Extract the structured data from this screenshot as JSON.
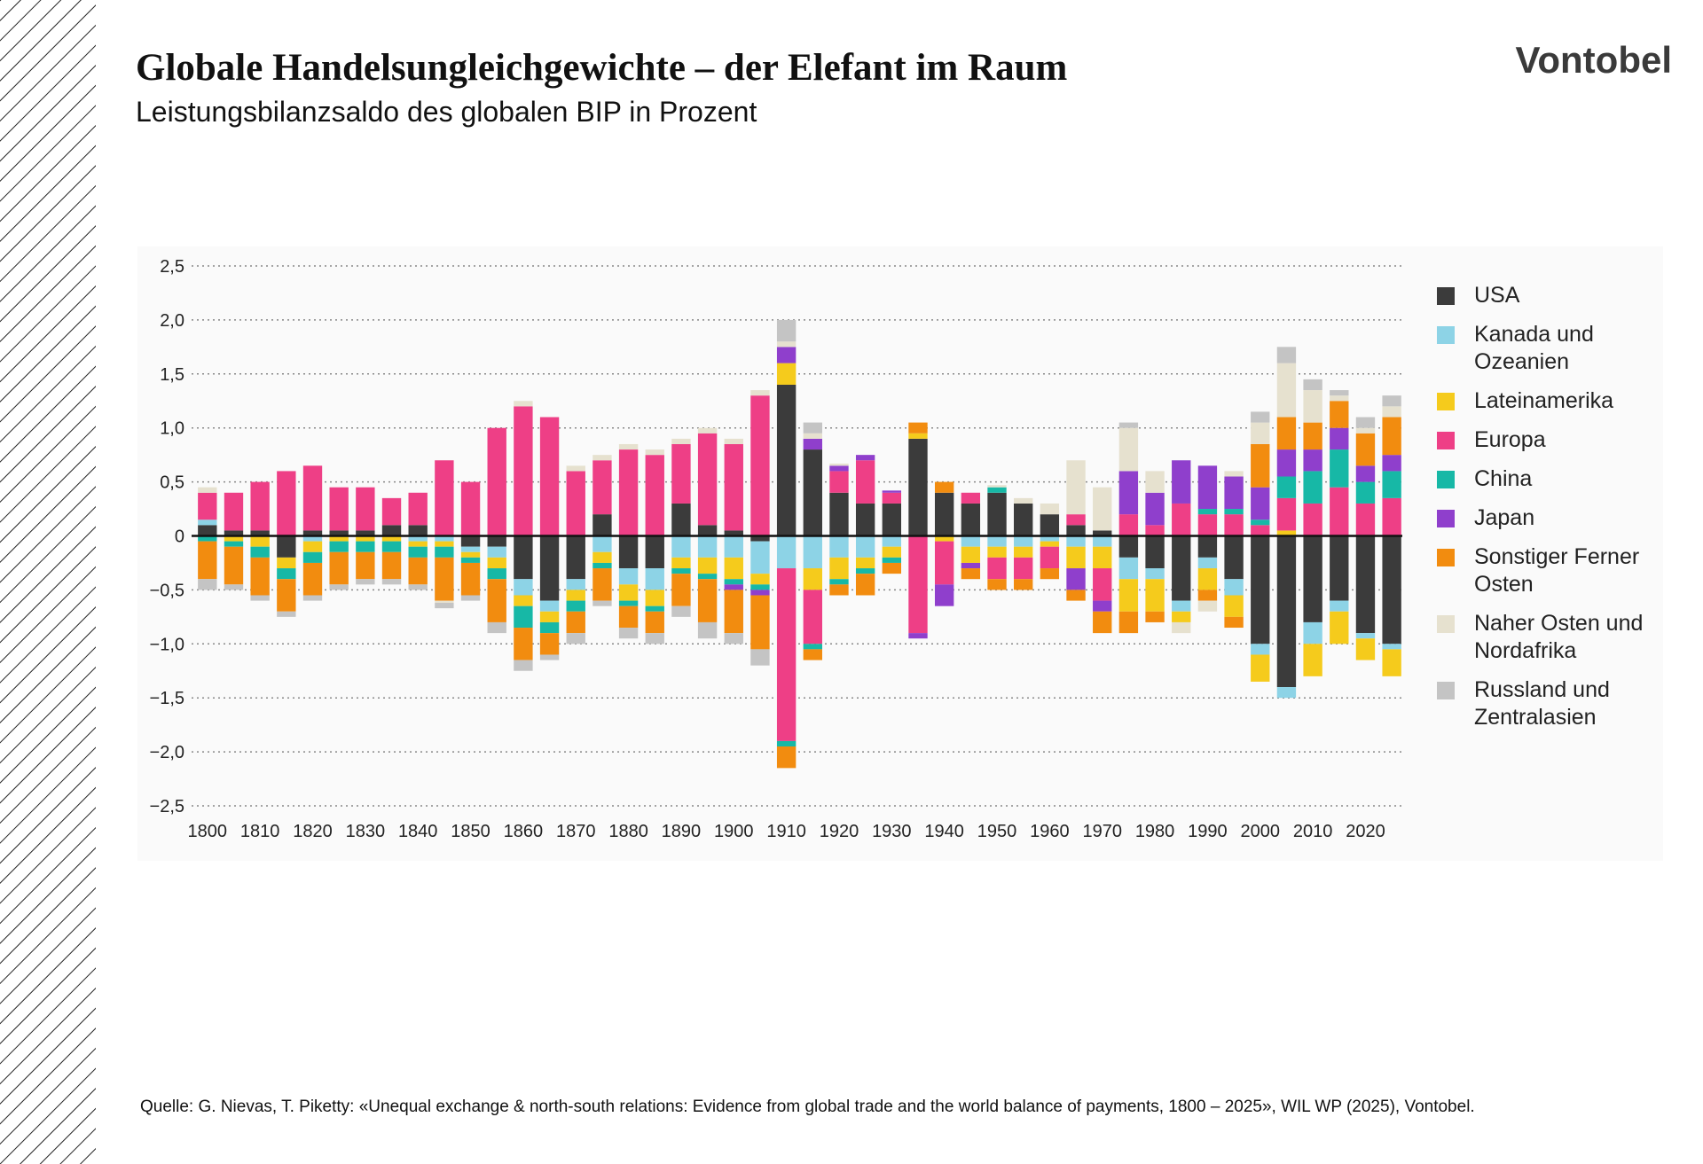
{
  "header": {
    "brand": "Vontobel"
  },
  "footer": {
    "source": "Quelle: G. Nievas, T. Piketty: «Unequal exchange & north-south relations: Evidence from global trade and the world balance of payments, 1800 – 2025», WIL WP (2025), Vontobel."
  },
  "chart_data": {
    "type": "stacked-bar",
    "title": "Globale Handelsungleichgewichte – der Elefant im Raum",
    "subtitle": "Leistungsbilanzsaldo des globalen BIP in Prozent",
    "x": [
      1800,
      1805,
      1810,
      1815,
      1820,
      1825,
      1830,
      1835,
      1840,
      1845,
      1850,
      1855,
      1860,
      1865,
      1870,
      1875,
      1880,
      1885,
      1890,
      1895,
      1900,
      1905,
      1910,
      1915,
      1920,
      1925,
      1930,
      1935,
      1940,
      1945,
      1950,
      1955,
      1960,
      1965,
      1970,
      1975,
      1980,
      1985,
      1990,
      1995,
      2000,
      2005,
      2010,
      2015,
      2020,
      2025
    ],
    "series": [
      {
        "name": "USA",
        "color": "#3b3b3b",
        "values": [
          0.1,
          0.05,
          0.05,
          -0.2,
          0.05,
          0.05,
          0.05,
          0.1,
          0.1,
          0,
          -0.1,
          -0.1,
          -0.4,
          -0.6,
          -0.4,
          0.2,
          -0.3,
          -0.3,
          0.3,
          0.1,
          0.05,
          -0.05,
          1.4,
          0.8,
          0.4,
          0.3,
          0.3,
          0.9,
          0.4,
          0.3,
          0.4,
          0.3,
          0.2,
          0.1,
          0.05,
          -0.2,
          -0.3,
          -0.6,
          -0.2,
          -0.4,
          -1,
          -1.4,
          -0.8,
          -0.6,
          -0.9,
          -1
        ]
      },
      {
        "name": "Kanada und Ozeanien",
        "color": "#8dd3e6",
        "values": [
          0.05,
          0,
          0,
          0,
          -0.05,
          0,
          0,
          0,
          -0.05,
          -0.05,
          -0.05,
          -0.1,
          -0.15,
          -0.1,
          -0.1,
          -0.15,
          -0.15,
          -0.2,
          -0.2,
          -0.2,
          -0.2,
          -0.3,
          -0.3,
          -0.3,
          -0.2,
          -0.2,
          -0.1,
          0,
          0,
          -0.1,
          -0.1,
          -0.1,
          -0.05,
          -0.1,
          -0.1,
          -0.2,
          -0.1,
          -0.1,
          -0.1,
          -0.15,
          -0.1,
          -0.1,
          -0.2,
          -0.1,
          -0.05,
          -0.05
        ]
      },
      {
        "name": "Lateinamerika",
        "color": "#f5cb1c",
        "values": [
          0,
          -0.05,
          -0.1,
          -0.1,
          -0.1,
          -0.05,
          -0.05,
          -0.05,
          -0.05,
          -0.05,
          -0.05,
          -0.1,
          -0.1,
          -0.1,
          -0.1,
          -0.1,
          -0.15,
          -0.15,
          -0.1,
          -0.15,
          -0.2,
          -0.1,
          0.2,
          -0.2,
          -0.2,
          -0.1,
          -0.1,
          0.05,
          -0.05,
          -0.15,
          -0.1,
          -0.1,
          -0.05,
          -0.2,
          -0.2,
          -0.3,
          -0.3,
          -0.1,
          -0.2,
          -0.2,
          -0.25,
          0.05,
          -0.3,
          -0.3,
          -0.2,
          -0.25
        ]
      },
      {
        "name": "Europa",
        "color": "#ee3f86",
        "values": [
          0.25,
          0.35,
          0.45,
          0.6,
          0.6,
          0.4,
          0.4,
          0.25,
          0.3,
          0.7,
          0.5,
          1,
          1.2,
          1.1,
          0.6,
          0.5,
          0.8,
          0.75,
          0.55,
          0.85,
          0.8,
          1.3,
          -1.6,
          -0.5,
          0.2,
          0.4,
          0.1,
          -0.9,
          -0.4,
          0.1,
          -0.2,
          -0.2,
          -0.2,
          0.1,
          -0.3,
          0.2,
          0.1,
          0.3,
          0.2,
          0.2,
          0.1,
          0.3,
          0.3,
          0.45,
          0.3,
          0.35
        ]
      },
      {
        "name": "China",
        "color": "#17b8a6",
        "values": [
          -0.05,
          -0.05,
          -0.1,
          -0.1,
          -0.1,
          -0.1,
          -0.1,
          -0.1,
          -0.1,
          -0.1,
          -0.05,
          -0.1,
          -0.2,
          -0.1,
          -0.1,
          -0.05,
          -0.05,
          -0.05,
          -0.05,
          -0.05,
          -0.05,
          -0.05,
          -0.05,
          -0.05,
          -0.05,
          -0.05,
          -0.05,
          0,
          0,
          0,
          0.05,
          0,
          0,
          0,
          0,
          0,
          0,
          0,
          0.05,
          0.05,
          0.05,
          0.2,
          0.3,
          0.35,
          0.2,
          0.25
        ]
      },
      {
        "name": "Japan",
        "color": "#8f3fcc",
        "values": [
          0,
          0,
          0,
          0,
          0,
          0,
          0,
          0,
          0,
          0,
          0,
          0,
          0,
          0,
          0,
          0,
          0,
          0,
          0,
          0,
          -0.05,
          -0.05,
          0.15,
          0.1,
          0.05,
          0.05,
          0.02,
          -0.05,
          -0.2,
          -0.05,
          0,
          0,
          0,
          -0.2,
          -0.1,
          0.4,
          0.3,
          0.4,
          0.4,
          0.3,
          0.3,
          0.25,
          0.2,
          0.2,
          0.15,
          0.15
        ]
      },
      {
        "name": "Sonstiger Ferner Osten",
        "color": "#f28c0f",
        "values": [
          -0.35,
          -0.35,
          -0.35,
          -0.3,
          -0.3,
          -0.3,
          -0.25,
          -0.25,
          -0.25,
          -0.4,
          -0.3,
          -0.4,
          -0.3,
          -0.2,
          -0.2,
          -0.3,
          -0.2,
          -0.2,
          -0.3,
          -0.4,
          -0.4,
          -0.5,
          -0.2,
          -0.1,
          -0.1,
          -0.2,
          -0.1,
          0.1,
          0.1,
          -0.1,
          -0.1,
          -0.1,
          -0.1,
          -0.1,
          -0.2,
          -0.2,
          -0.1,
          0,
          -0.1,
          -0.1,
          0.4,
          0.3,
          0.25,
          0.25,
          0.3,
          0.35
        ]
      },
      {
        "name": "Naher Osten und Nordafrika",
        "color": "#e6e1cf",
        "values": [
          0.05,
          0,
          0,
          0,
          0,
          0,
          0,
          0,
          0,
          -0.02,
          0,
          0,
          0.05,
          0,
          0.05,
          0.05,
          0.05,
          0.05,
          0.05,
          0.05,
          0.05,
          0.05,
          0.05,
          0.05,
          0.02,
          0,
          0,
          0,
          0,
          0,
          0.02,
          0.05,
          0.1,
          0.5,
          0.4,
          0.4,
          0.2,
          -0.1,
          -0.1,
          0.05,
          0.2,
          0.5,
          0.3,
          0.05,
          0.05,
          0.1
        ]
      },
      {
        "name": "Russland und Zentralasien",
        "color": "#c4c4c4",
        "values": [
          -0.1,
          -0.05,
          -0.05,
          -0.05,
          -0.05,
          -0.05,
          -0.05,
          -0.05,
          -0.05,
          -0.05,
          -0.05,
          -0.1,
          -0.1,
          -0.05,
          -0.1,
          -0.05,
          -0.1,
          -0.1,
          -0.1,
          -0.15,
          -0.1,
          -0.15,
          0.2,
          0.1,
          0,
          0,
          0,
          0,
          0,
          0,
          0,
          0,
          0,
          0,
          0,
          0.05,
          0,
          0,
          0,
          0,
          0.1,
          0.15,
          0.1,
          0.05,
          0.1,
          0.1
        ]
      }
    ],
    "xlim": [
      1797,
      2027
    ],
    "ylim": [
      -2.5,
      2.5
    ],
    "xticks": [
      1800,
      1810,
      1820,
      1830,
      1840,
      1850,
      1860,
      1870,
      1880,
      1890,
      1900,
      1910,
      1920,
      1930,
      1940,
      1950,
      1960,
      1970,
      1980,
      1990,
      2000,
      2010,
      2020
    ],
    "yticks": [
      {
        "value": 2.5,
        "label": "2,5"
      },
      {
        "value": 2,
        "label": "2,0"
      },
      {
        "value": 1.5,
        "label": "1,5"
      },
      {
        "value": 1,
        "label": "1,0"
      },
      {
        "value": 0.5,
        "label": "0,5"
      },
      0,
      {
        "value": -0.5,
        "label": "−0,5"
      },
      {
        "value": -1,
        "label": "−1,0"
      },
      {
        "value": -1.5,
        "label": "−1,5"
      },
      {
        "value": -2,
        "label": "−2,0"
      },
      {
        "value": -2.5,
        "label": "−2,5"
      }
    ],
    "grid": true
  }
}
